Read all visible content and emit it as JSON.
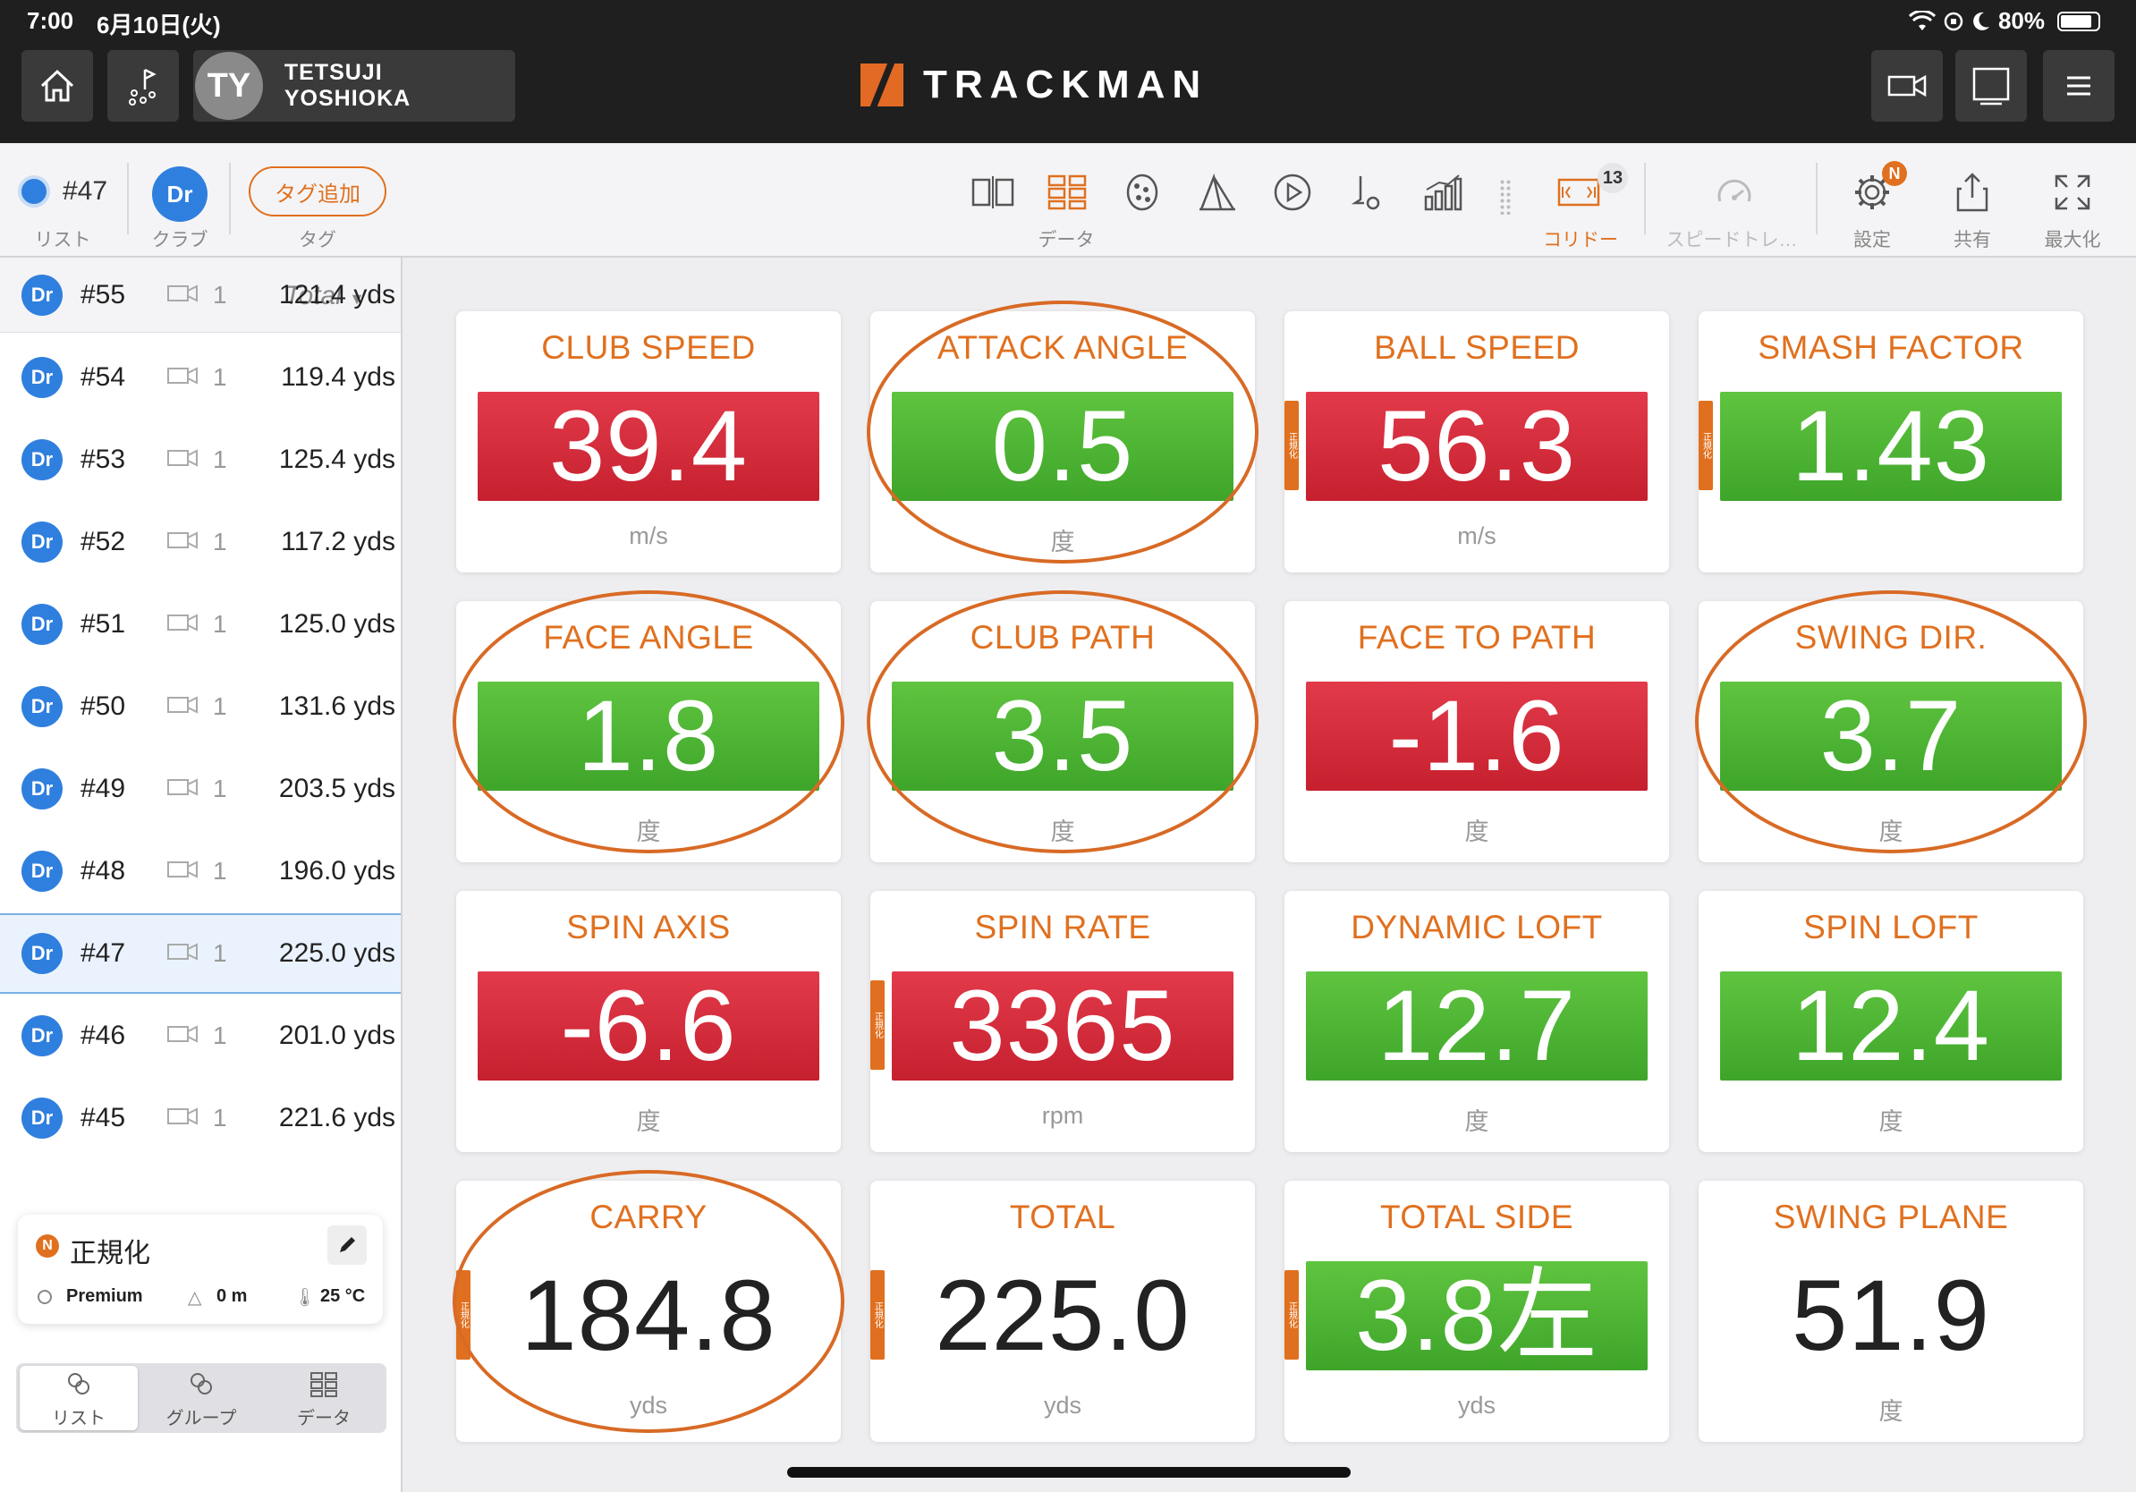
{
  "status": {
    "time": "7:00",
    "date": "6月10日(火)",
    "battery": "80%"
  },
  "header": {
    "avatar_initials": "TY",
    "user_name": "TETSUJI YOSHIOKA",
    "logo": "TRACKMAN"
  },
  "toolbar": {
    "shot_label": "#47",
    "list_label": "リスト",
    "club_badge": "Dr",
    "club_label": "クラブ",
    "tag_button": "タグ追加",
    "tag_label": "タグ",
    "data_label": "データ",
    "corridor_label": "コリドー",
    "corridor_count": "13",
    "speed_label": "スピードトレ…",
    "settings_label": "設定",
    "settings_badge": "N",
    "share_label": "共有",
    "maximize_label": "最大化"
  },
  "sidebar": {
    "sort_label": "Total",
    "shots": [
      {
        "club": "Dr",
        "num": "#55",
        "cam": "1",
        "dist": "121.4 yds"
      },
      {
        "club": "Dr",
        "num": "#54",
        "cam": "1",
        "dist": "119.4 yds"
      },
      {
        "club": "Dr",
        "num": "#53",
        "cam": "1",
        "dist": "125.4 yds"
      },
      {
        "club": "Dr",
        "num": "#52",
        "cam": "1",
        "dist": "117.2 yds"
      },
      {
        "club": "Dr",
        "num": "#51",
        "cam": "1",
        "dist": "125.0 yds"
      },
      {
        "club": "Dr",
        "num": "#50",
        "cam": "1",
        "dist": "131.6 yds"
      },
      {
        "club": "Dr",
        "num": "#49",
        "cam": "1",
        "dist": "203.5 yds"
      },
      {
        "club": "Dr",
        "num": "#48",
        "cam": "1",
        "dist": "196.0 yds"
      },
      {
        "club": "Dr",
        "num": "#47",
        "cam": "1",
        "dist": "225.0 yds"
      },
      {
        "club": "Dr",
        "num": "#46",
        "cam": "1",
        "dist": "201.0 yds"
      },
      {
        "club": "Dr",
        "num": "#45",
        "cam": "1",
        "dist": "221.6 yds"
      }
    ],
    "normalize": {
      "badge": "N",
      "title": "正規化",
      "ball": "Premium",
      "altitude": "0 m",
      "temp": "25 °C"
    },
    "tabs": {
      "list": "リスト",
      "group": "グループ",
      "data": "データ"
    }
  },
  "tiles": [
    {
      "title": "CLUB SPEED",
      "value": "39.4",
      "unit": "m/s",
      "status": "red"
    },
    {
      "title": "ATTACK ANGLE",
      "value": "0.5",
      "unit": "度",
      "status": "green"
    },
    {
      "title": "BALL SPEED",
      "value": "56.3",
      "unit": "m/s",
      "status": "red",
      "norm": "正規化"
    },
    {
      "title": "SMASH FACTOR",
      "value": "1.43",
      "unit": "",
      "status": "green",
      "norm": "正規化"
    },
    {
      "title": "FACE ANGLE",
      "value": "1.8",
      "unit": "度",
      "status": "green"
    },
    {
      "title": "CLUB PATH",
      "value": "3.5",
      "unit": "度",
      "status": "green"
    },
    {
      "title": "FACE TO PATH",
      "value": "-1.6",
      "unit": "度",
      "status": "red"
    },
    {
      "title": "SWING DIR.",
      "value": "3.7",
      "unit": "度",
      "status": "green"
    },
    {
      "title": "SPIN AXIS",
      "value": "-6.6",
      "unit": "度",
      "status": "red"
    },
    {
      "title": "SPIN RATE",
      "value": "3365",
      "unit": "rpm",
      "status": "red",
      "norm": "正規化"
    },
    {
      "title": "DYNAMIC LOFT",
      "value": "12.7",
      "unit": "度",
      "status": "green"
    },
    {
      "title": "SPIN LOFT",
      "value": "12.4",
      "unit": "度",
      "status": "green"
    },
    {
      "title": "CARRY",
      "value": "184.8",
      "unit": "yds",
      "status": "none",
      "norm": "正規化"
    },
    {
      "title": "TOTAL",
      "value": "225.0",
      "unit": "yds",
      "status": "none",
      "norm": "正規化"
    },
    {
      "title": "TOTAL SIDE",
      "value": "3.8左",
      "unit": "yds",
      "status": "green",
      "norm": "正規化"
    },
    {
      "title": "SWING PLANE",
      "value": "51.9",
      "unit": "度",
      "status": "none"
    }
  ],
  "colors": {
    "accent": "#e0701f",
    "good": "#4cb334",
    "bad": "#d12c3b",
    "club_blue": "#2f7fde"
  }
}
